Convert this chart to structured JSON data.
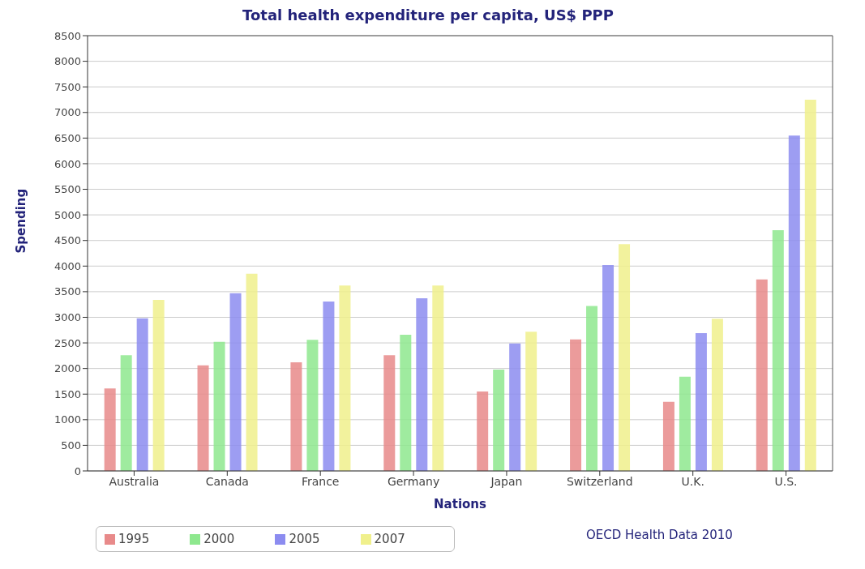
{
  "chart_data": {
    "type": "bar",
    "title": "Total health expenditure per capita, US$ PPP",
    "xlabel": "Nations",
    "ylabel": "Spending",
    "categories": [
      "Australia",
      "Canada",
      "France",
      "Germany",
      "Japan",
      "Switzerland",
      "U.K.",
      "U.S."
    ],
    "series": [
      {
        "name": "1995",
        "color": "#e88a8a",
        "values": [
          1610,
          2060,
          2120,
          2260,
          1550,
          2570,
          1350,
          3740
        ]
      },
      {
        "name": "2000",
        "color": "#8ee88e",
        "values": [
          2260,
          2520,
          2560,
          2660,
          1980,
          3220,
          1840,
          4700
        ]
      },
      {
        "name": "2005",
        "color": "#8c8cf0",
        "values": [
          2980,
          3470,
          3310,
          3370,
          2490,
          4020,
          2690,
          6550
        ]
      },
      {
        "name": "2007",
        "color": "#f0f08c",
        "values": [
          3340,
          3850,
          3620,
          3620,
          2720,
          4430,
          2970,
          7250
        ]
      }
    ],
    "ylim": [
      0,
      8500
    ],
    "yticks": [
      0,
      500,
      1000,
      1500,
      2000,
      2500,
      3000,
      3500,
      4000,
      4500,
      5000,
      5500,
      6000,
      6500,
      7000,
      7500,
      8000,
      8500
    ],
    "grid": "y",
    "legend": "bottom left",
    "annotations": [
      "OECD Health Data 2010"
    ]
  }
}
